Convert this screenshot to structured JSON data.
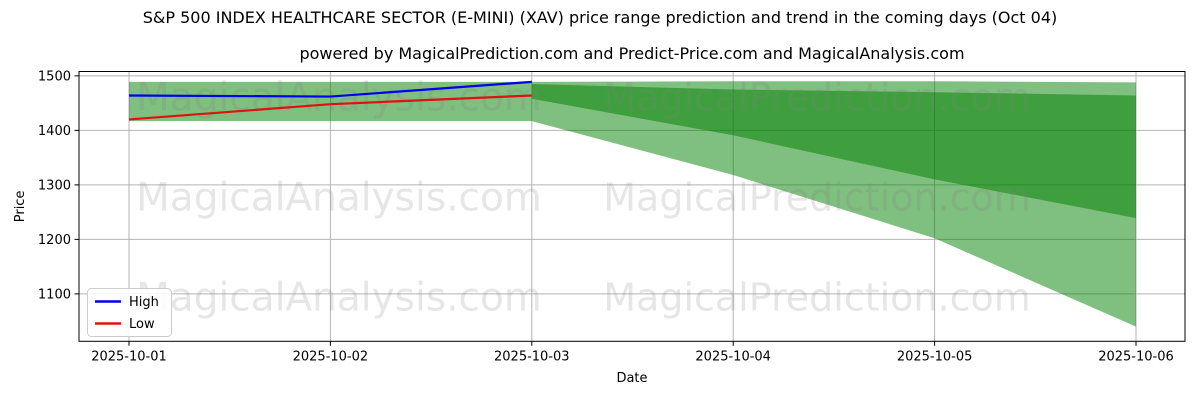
{
  "figure": {
    "title": "S&P 500 INDEX HEALTHCARE SECTOR (E-MINI) (XAV) price range prediction and trend in the coming days (Oct 04)",
    "subtitle": "powered by MagicalPrediction.com and Predict-Price.com and MagicalAnalysis.com"
  },
  "watermark": {
    "left_text": "MagicalAnalysis.com",
    "right_text": "MagicalPrediction.com",
    "color": "rgba(128,128,128,0.2)"
  },
  "colors": {
    "high_line": "#0000ee",
    "low_line": "#e01111",
    "band_green": "#008000",
    "band_opacity": 0.5,
    "grid": "#b4b4b4",
    "spine": "#000000",
    "text": "#000000",
    "legend_border": "#cccccc",
    "legend_bg": "rgba(255,255,255,0.85)"
  },
  "chart_data": {
    "type": "line",
    "xlabel": "Date",
    "ylabel": "Price",
    "x_tick_labels": [
      "2025-10-01",
      "2025-10-02",
      "2025-10-03",
      "2025-10-04",
      "2025-10-05",
      "2025-10-06"
    ],
    "y_ticks": [
      1100,
      1200,
      1300,
      1400,
      1500
    ],
    "ylim": [
      1013,
      1508
    ],
    "grid": true,
    "legend": {
      "position": "lower-left",
      "entries": [
        {
          "label": "High",
          "color_key": "high_line"
        },
        {
          "label": "Low",
          "color_key": "low_line"
        }
      ]
    },
    "series": [
      {
        "name": "High",
        "color_key": "high_line",
        "x_index": [
          0,
          1,
          2
        ],
        "values": [
          1464,
          1462,
          1489
        ]
      },
      {
        "name": "Low",
        "color_key": "low_line",
        "x_index": [
          0,
          1,
          2
        ],
        "values": [
          1420,
          1448,
          1464
        ]
      }
    ],
    "bands": [
      {
        "name": "historical-range",
        "x_index": [
          0,
          2
        ],
        "upper": [
          1489,
          1489
        ],
        "lower": [
          1417,
          1417
        ]
      },
      {
        "name": "forecast-outer-range",
        "x_index": [
          2,
          3,
          4,
          5
        ],
        "upper": [
          1489,
          1490,
          1490,
          1488
        ],
        "lower": [
          1417,
          1318,
          1202,
          1040
        ]
      },
      {
        "name": "forecast-inner-range",
        "x_index": [
          2,
          3,
          4,
          5
        ],
        "upper": [
          1485,
          1475,
          1470,
          1464
        ],
        "lower": [
          1458,
          1391,
          1310,
          1239
        ]
      }
    ]
  }
}
